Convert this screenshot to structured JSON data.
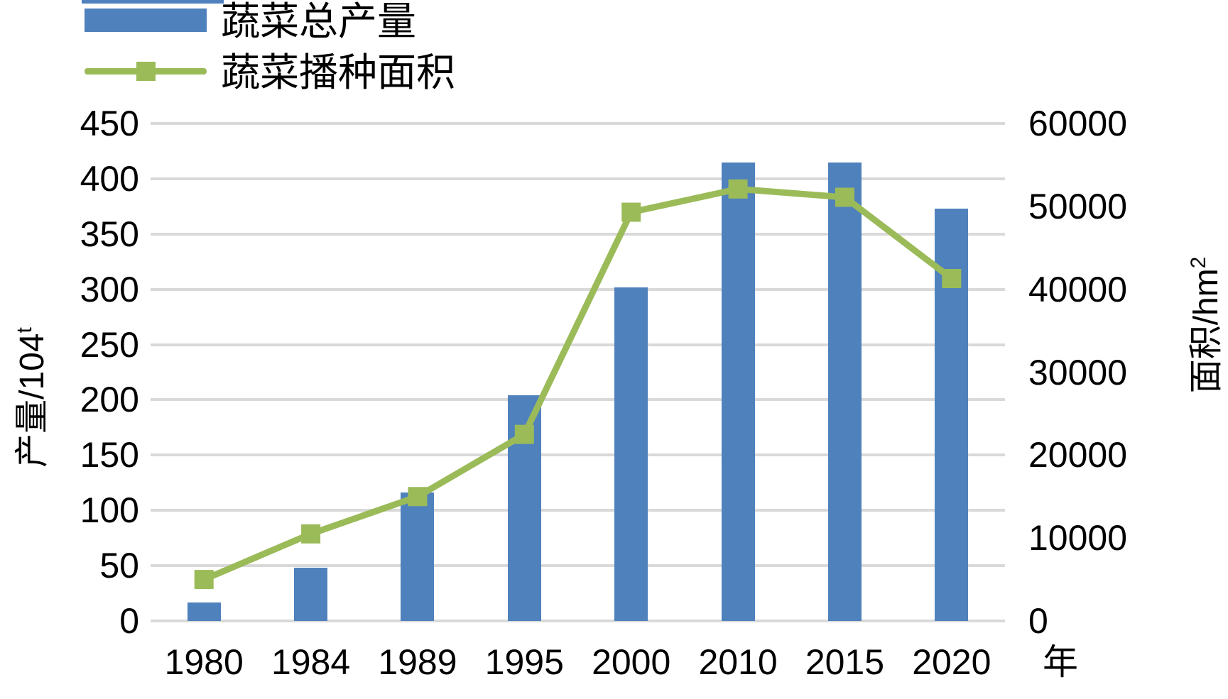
{
  "legend": {
    "items": [
      {
        "label": "蔬菜总产量",
        "type": "bar-swatch"
      },
      {
        "label": "蔬菜播种面积",
        "type": "line-swatch"
      }
    ]
  },
  "colors": {
    "bar_blue": "#4f81bd",
    "line_green": "#9bbb59",
    "gridline_gray": "#d9d9d9",
    "text_black": "#000000",
    "background": "#ffffff"
  },
  "chart_data": {
    "type": "bar",
    "subtype": "combo-bar-line-dual-axis",
    "categories": [
      "1980",
      "1984",
      "1989",
      "1995",
      "2000",
      "2010",
      "2015",
      "2020"
    ],
    "series": [
      {
        "name": "蔬菜总产量",
        "type": "bar",
        "axis": "left",
        "color": "#4f81bd",
        "values": [
          17,
          48,
          116,
          204,
          302,
          415,
          415,
          373
        ]
      },
      {
        "name": "蔬菜播种面积",
        "type": "line",
        "axis": "right",
        "color": "#9bbb59",
        "marker": "square",
        "values": [
          5000,
          10500,
          15000,
          22500,
          49300,
          52100,
          51100,
          41300
        ]
      }
    ],
    "left_axis": {
      "title_base": "产量/104",
      "title_sup": "t",
      "range": [
        0,
        450
      ],
      "tick_step": 50,
      "ticks": [
        450,
        400,
        350,
        300,
        250,
        200,
        150,
        100,
        50,
        0
      ]
    },
    "right_axis": {
      "title_base": "面积/hm",
      "title_sup": "2",
      "range": [
        0,
        60000
      ],
      "tick_step": 10000,
      "ticks": [
        60000,
        50000,
        40000,
        30000,
        20000,
        10000,
        0
      ]
    },
    "x_axis": {
      "title": "年"
    },
    "grid": true,
    "legend_position": "top-left"
  }
}
